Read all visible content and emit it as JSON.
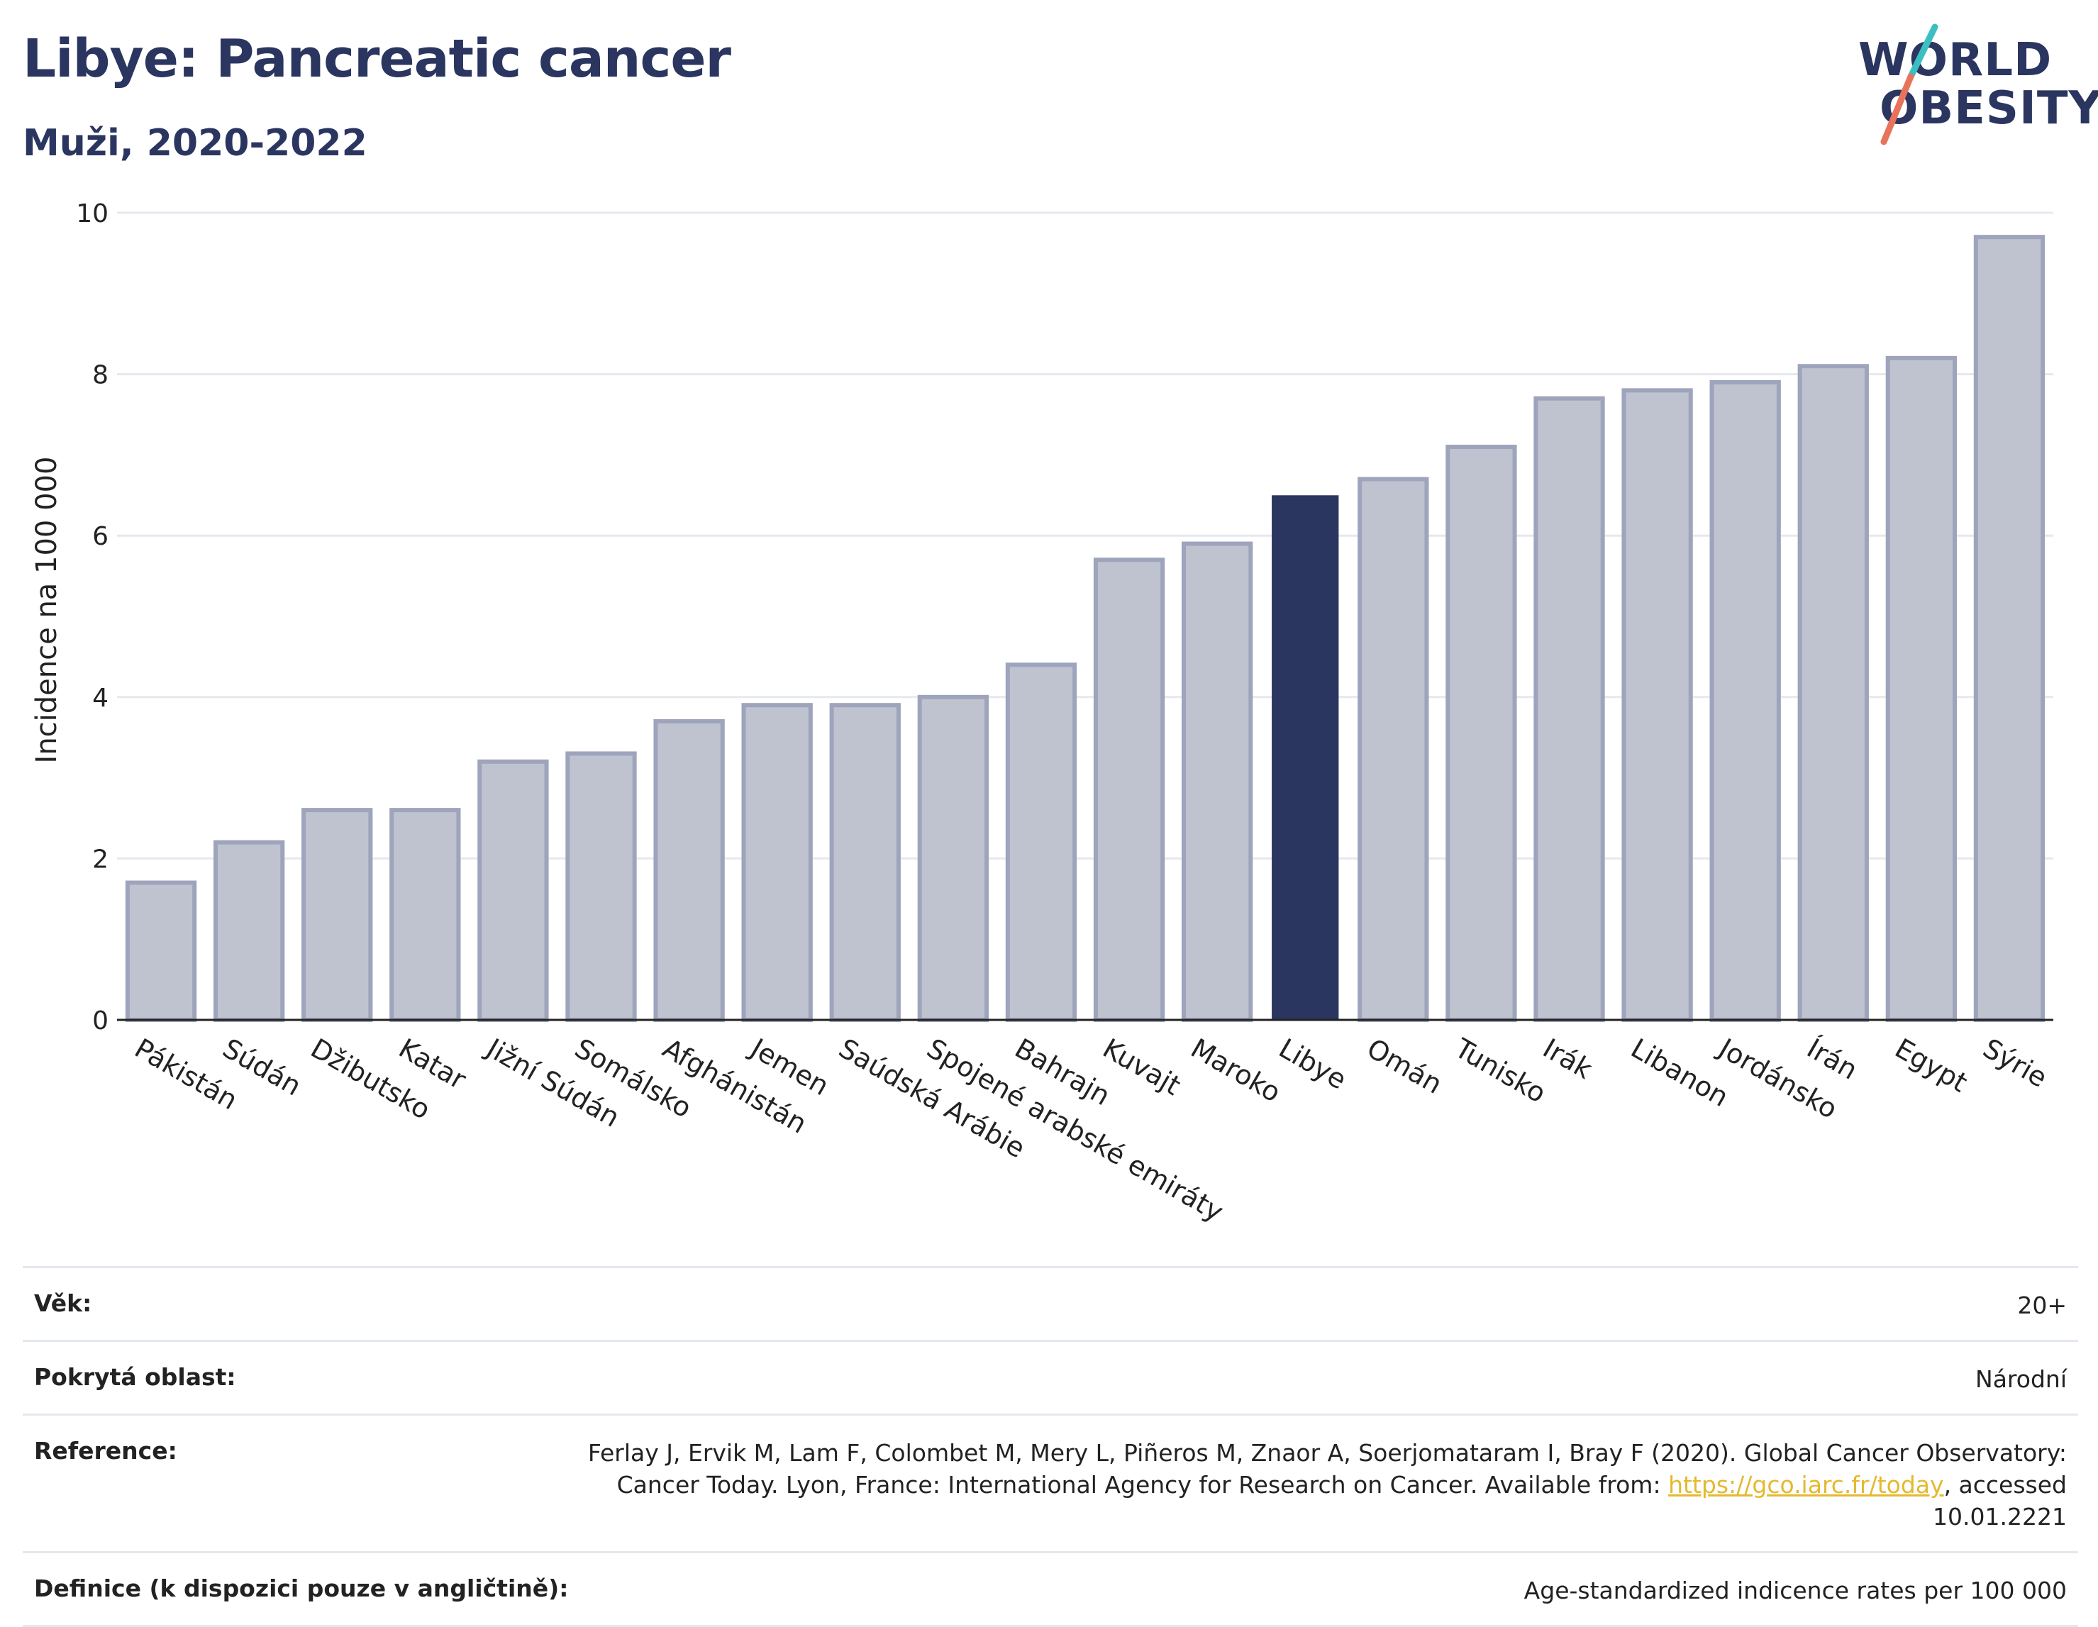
{
  "header": {
    "title": "Libye: Pancreatic cancer",
    "subtitle": "Muži, 2020-2022"
  },
  "logo": {
    "line1": "WORLD",
    "line2": "OBESITY",
    "accent_colors": [
      "#3bbfc0",
      "#e8735c"
    ]
  },
  "chart_data": {
    "type": "bar",
    "title": "Libye: Pancreatic cancer",
    "subtitle": "Muži, 2020-2022",
    "ylabel": "Incidence na 100 000",
    "xlabel": "",
    "ylim": [
      0,
      10
    ],
    "yticks": [
      0,
      2,
      4,
      6,
      8,
      10
    ],
    "grid": true,
    "highlight": "Libye",
    "colors": {
      "bar": "#bfc3d0",
      "bar_edge": "#9ea4bb",
      "highlight": "#2a3560"
    },
    "categories": [
      "Pákistán",
      "Súdán",
      "Džibutsko",
      "Katar",
      "Jižní Súdán",
      "Somálsko",
      "Afghánistán",
      "Jemen",
      "Saúdská Arábie",
      "Spojené arabské emiráty",
      "Bahrajn",
      "Kuvajt",
      "Maroko",
      "Libye",
      "Omán",
      "Tunisko",
      "Irák",
      "Libanon",
      "Jordánsko",
      "Írán",
      "Egypt",
      "Sýrie"
    ],
    "values": [
      1.7,
      2.2,
      2.6,
      2.6,
      3.2,
      3.3,
      3.7,
      3.9,
      3.9,
      4.0,
      4.4,
      5.7,
      5.9,
      6.5,
      6.7,
      7.1,
      7.7,
      7.8,
      7.9,
      8.1,
      8.2,
      9.7
    ]
  },
  "meta": {
    "age_label": "Věk:",
    "age_value": "20+",
    "coverage_label": "Pokrytá oblast:",
    "coverage_value": "Národní",
    "reference_label": "Reference:",
    "reference_text": "Ferlay J, Ervik M, Lam F, Colombet M, Mery L, Piñeros M, Znaor A, Soerjomataram I, Bray F (2020). Global Cancer Observatory: Cancer Today. Lyon, France: International Agency for Research on Cancer. Available from: ",
    "reference_link": "https://gco.iarc.fr/today",
    "reference_suffix": ", accessed 10.01.2221",
    "definition_label": "Definice (k dispozici pouze v angličtině):",
    "definition_value": "Age-standardized indicence rates per 100 000"
  }
}
